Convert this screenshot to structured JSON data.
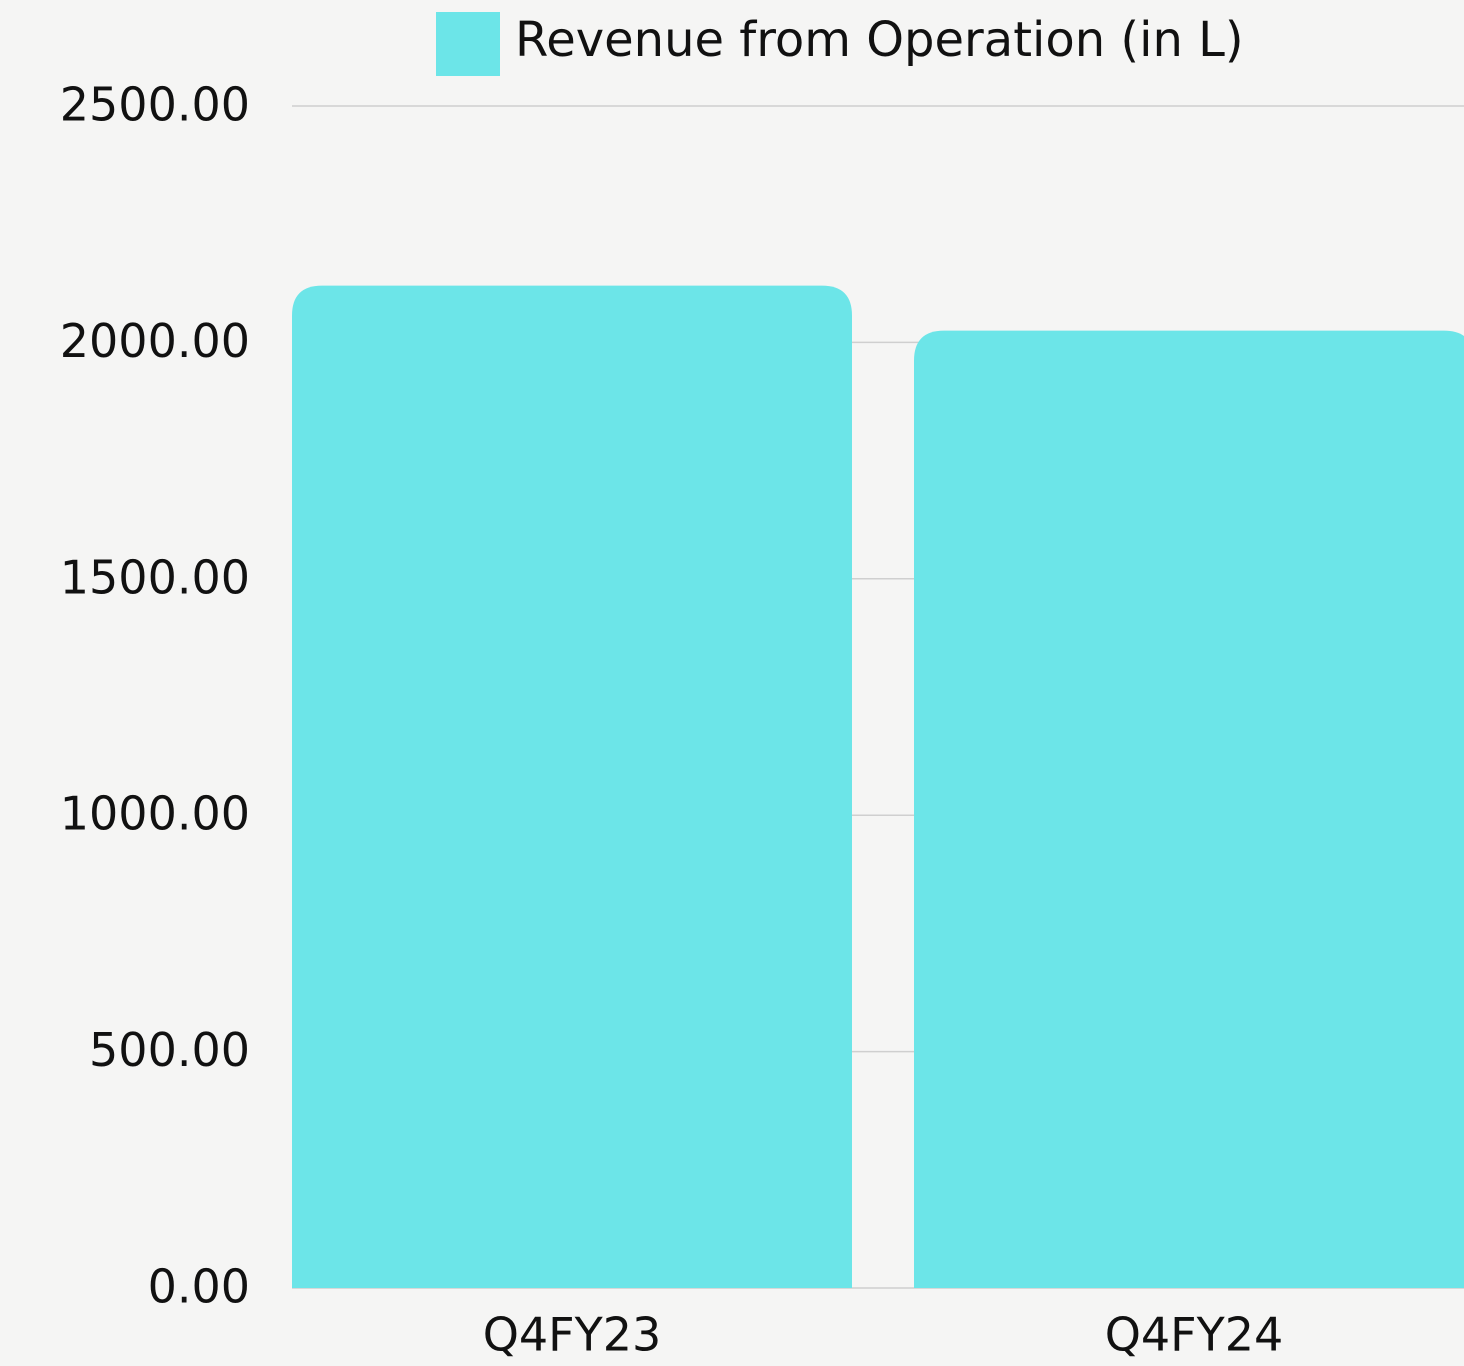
{
  "chart_data": {
    "type": "bar",
    "series": [
      {
        "name": "Revenue from Operation (in L)",
        "color": "#6ce5e8",
        "values": [
          2120,
          2025
        ]
      }
    ],
    "categories": [
      "Q4FY23",
      "Q4FY24"
    ],
    "ylim": [
      0,
      2500
    ],
    "yticks": [
      {
        "value": 0,
        "label": "0.00"
      },
      {
        "value": 500,
        "label": "500.00"
      },
      {
        "value": 1000,
        "label": "1000.00"
      },
      {
        "value": 1500,
        "label": "1500.00"
      },
      {
        "value": 2000,
        "label": "2000.00"
      },
      {
        "value": 2500,
        "label": "2500.00"
      }
    ],
    "grid": true,
    "legend": "top"
  }
}
